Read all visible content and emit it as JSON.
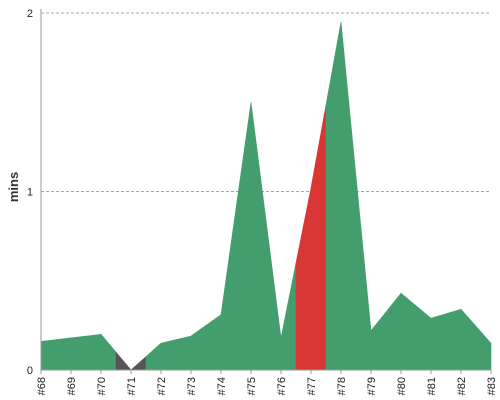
{
  "chart_data": {
    "type": "area",
    "title": "",
    "xlabel": "",
    "ylabel": "mins",
    "ylim": [
      0,
      2
    ],
    "yticks": [
      0,
      1,
      2
    ],
    "grid": true,
    "categories": [
      "#68",
      "#69",
      "#70",
      "#71",
      "#72",
      "#73",
      "#74",
      "#75",
      "#76",
      "#77",
      "#78",
      "#79",
      "#80",
      "#81",
      "#82",
      "#83"
    ],
    "values": [
      0.16,
      0.18,
      0.2,
      0.0,
      0.15,
      0.19,
      0.31,
      1.5,
      0.18,
      1.02,
      1.95,
      0.22,
      0.43,
      0.29,
      0.34,
      0.15
    ],
    "status": [
      "success",
      "success",
      "success",
      "aborted",
      "success",
      "success",
      "success",
      "success",
      "success",
      "failure",
      "success",
      "success",
      "success",
      "success",
      "success",
      "success"
    ],
    "colors": {
      "success": "#449d6c",
      "failure": "#d93636",
      "aborted": "#555555",
      "grid": "#888888",
      "axis": "#999999"
    }
  }
}
